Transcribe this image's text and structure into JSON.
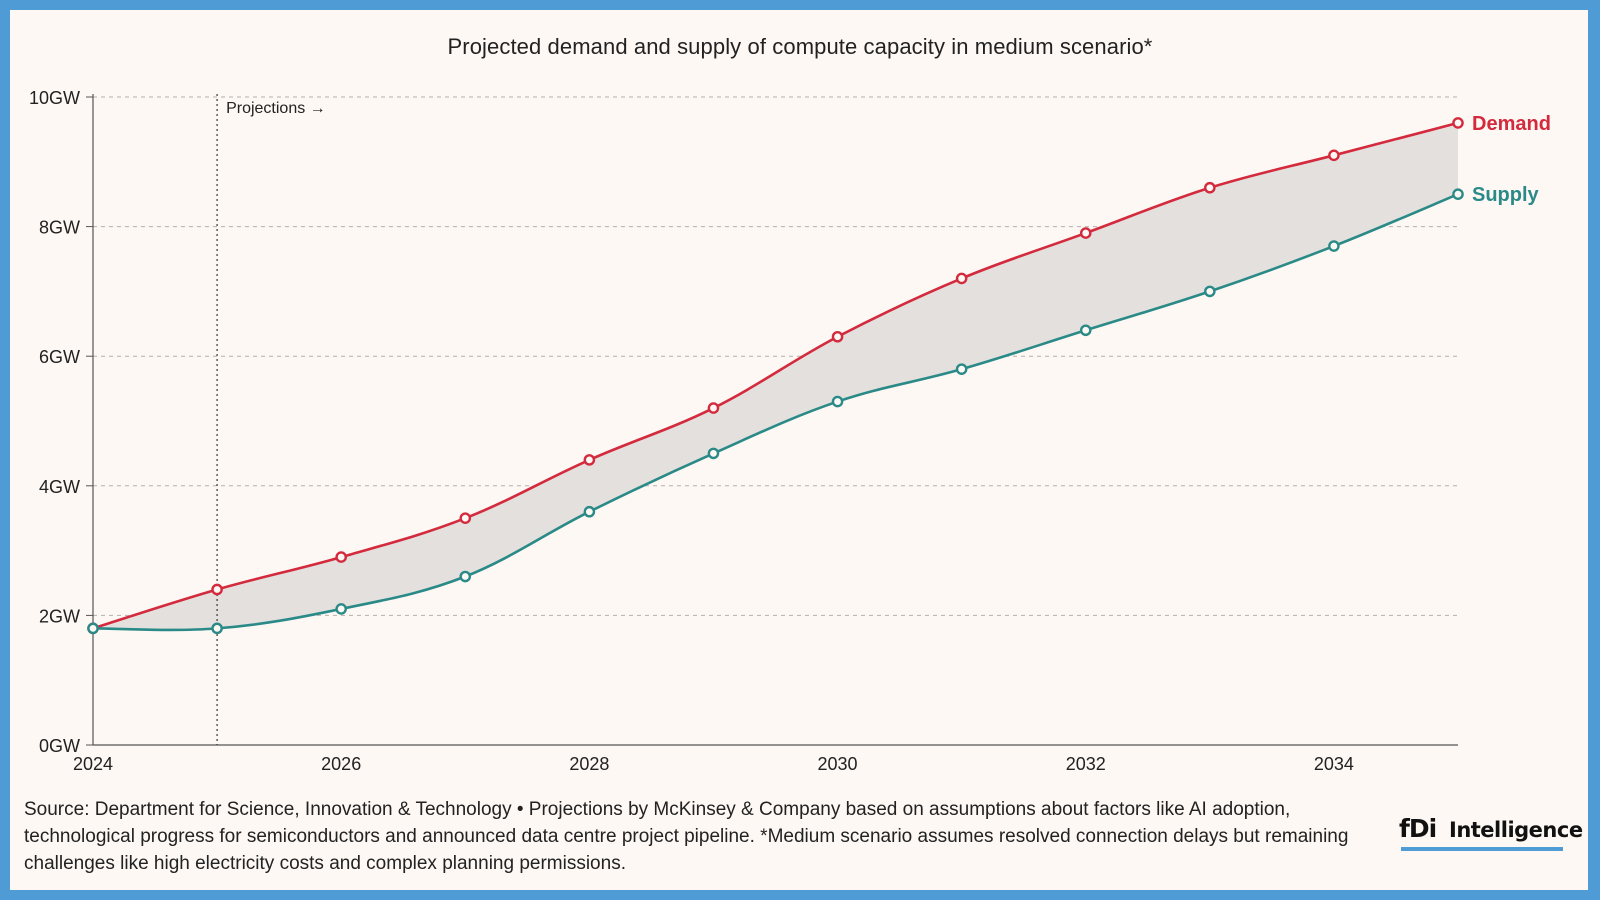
{
  "title": "Projected demand and supply of compute capacity in medium scenario*",
  "source": "Source: Department for Science, Innovation & Technology • Projections by McKinsey & Company based on assumptions about factors like AI adoption, technological progress for semiconductors and announced data centre project pipeline. *Medium scenario assumes resolved connection delays but remaining challenges like high electricity costs and complex planning permissions.",
  "logo": {
    "fdi": "fDi",
    "name": "Intelligence",
    "accent": "#4e9bd6"
  },
  "colors": {
    "demand": "#d42a3d",
    "supply": "#2a8a87",
    "band": "#e4e0de",
    "border": "#4e9bd6"
  },
  "chart_data": {
    "type": "line",
    "title": "Projected demand and supply of compute capacity in medium scenario*",
    "x": [
      2024,
      2025,
      2026,
      2027,
      2028,
      2029,
      2030,
      2031,
      2032,
      2033,
      2034,
      2035
    ],
    "xticks": [
      "2024",
      "2026",
      "2028",
      "2030",
      "2032",
      "2034"
    ],
    "xtick_values": [
      2024,
      2026,
      2028,
      2030,
      2032,
      2034
    ],
    "xlim": [
      2024,
      2035
    ],
    "yticks": [
      "0GW",
      "2GW",
      "4GW",
      "6GW",
      "8GW",
      "10GW"
    ],
    "ytick_values": [
      0,
      2,
      4,
      6,
      8,
      10
    ],
    "ylim": [
      0,
      10
    ],
    "ylabel": "",
    "xlabel": "",
    "grid": "horizontal dashed",
    "annotation": {
      "label": "Projections →",
      "x": 2025
    },
    "series": [
      {
        "name": "Demand",
        "color": "#d42a3d",
        "values": [
          1.8,
          2.4,
          2.9,
          3.5,
          4.4,
          5.2,
          6.3,
          7.2,
          7.9,
          8.6,
          9.1,
          9.6
        ]
      },
      {
        "name": "Supply",
        "color": "#2a8a87",
        "values": [
          1.8,
          1.8,
          2.1,
          2.6,
          3.6,
          4.5,
          5.3,
          5.8,
          6.4,
          7.0,
          7.7,
          8.5
        ]
      }
    ]
  }
}
